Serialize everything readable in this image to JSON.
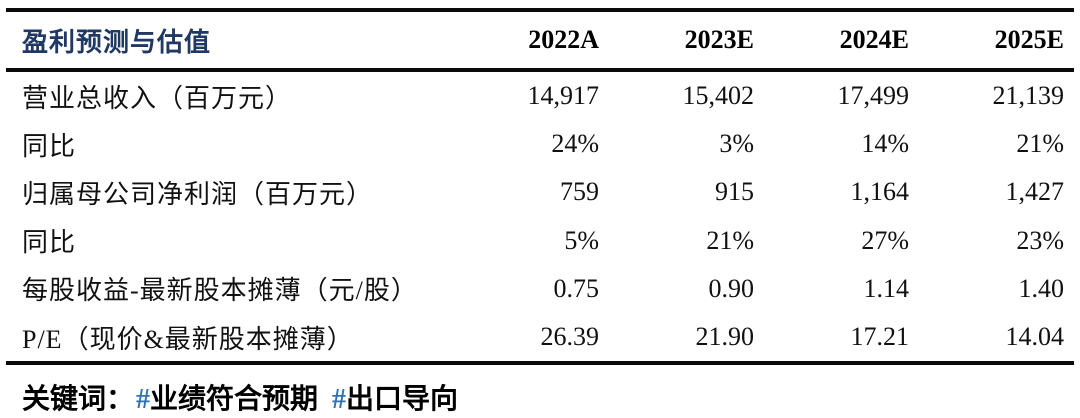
{
  "table": {
    "title": "盈利预测与估值",
    "columns": [
      "2022A",
      "2023E",
      "2024E",
      "2025E"
    ],
    "rows": [
      {
        "label": "营业总收入（百万元）",
        "values": [
          "14,917",
          "15,402",
          "17,499",
          "21,139"
        ]
      },
      {
        "label": "同比",
        "values": [
          "24%",
          "3%",
          "14%",
          "21%"
        ]
      },
      {
        "label": "归属母公司净利润（百万元）",
        "values": [
          "759",
          "915",
          "1,164",
          "1,427"
        ]
      },
      {
        "label": "同比",
        "values": [
          "5%",
          "21%",
          "27%",
          "23%"
        ]
      },
      {
        "label": "每股收益-最新股本摊薄（元/股）",
        "values": [
          "0.75",
          "0.90",
          "1.14",
          "1.40"
        ]
      },
      {
        "label": "P/E（现价&最新股本摊薄）",
        "values": [
          "26.39",
          "21.90",
          "17.21",
          "14.04"
        ]
      }
    ]
  },
  "footer": {
    "prefix": "关键词：",
    "hash": "#",
    "tags": [
      "业绩符合预期",
      "出口导向"
    ]
  },
  "colors": {
    "title_navy": "#1f3864",
    "hash_blue": "#2e74b5",
    "rule_black": "#0a0a0a",
    "text_black": "#111111",
    "background": "#ffffff"
  }
}
